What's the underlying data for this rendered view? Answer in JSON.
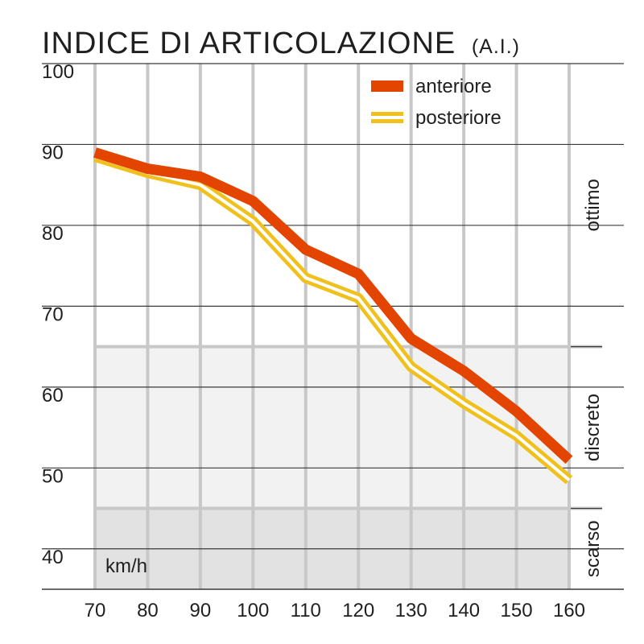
{
  "chart_data": {
    "type": "line",
    "title": "INDICE DI ARTICOLAZIONE",
    "subtitle": "(A.I.)",
    "unit_label": "km/h",
    "x": [
      70,
      80,
      90,
      100,
      110,
      120,
      130,
      140,
      150,
      160
    ],
    "xlim": [
      70,
      160
    ],
    "ylim": [
      35,
      100
    ],
    "y_ticks": [
      100,
      90,
      80,
      70,
      60,
      50,
      40
    ],
    "grid": true,
    "legend_position": "top-right",
    "series": [
      {
        "name": "anteriore",
        "values": [
          89,
          87,
          86,
          83,
          77,
          74,
          66,
          62,
          57,
          51
        ],
        "color": "#e34500",
        "style": "solid"
      },
      {
        "name": "posteriore",
        "values": [
          88.5,
          86.5,
          85,
          80.5,
          73.5,
          71,
          62.5,
          58,
          54,
          48.5
        ],
        "color": "#f0c01c",
        "style": "double"
      }
    ],
    "zones": [
      {
        "label": "ottimo",
        "from": 65,
        "to": 100,
        "color": "#ffffff"
      },
      {
        "label": "discreto",
        "from": 45,
        "to": 65,
        "color": "#f2f2f2"
      },
      {
        "label": "scarso",
        "from": 35,
        "to": 45,
        "color": "#e2e2e2"
      }
    ]
  }
}
